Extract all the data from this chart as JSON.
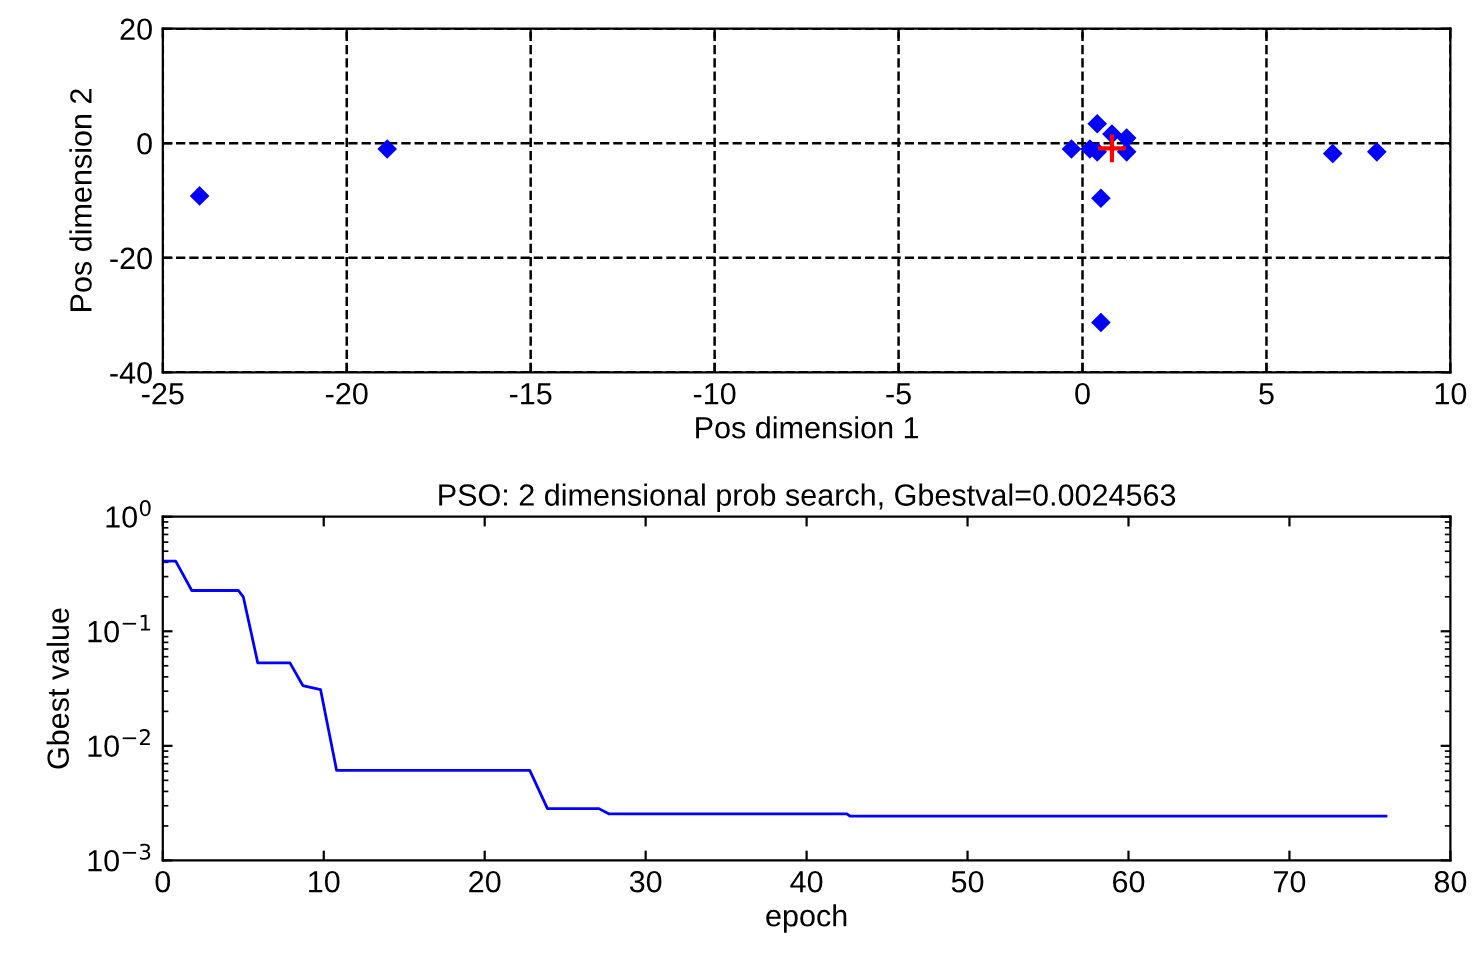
{
  "chart_data": [
    {
      "type": "scatter",
      "xlabel": "Pos dimension 1",
      "ylabel": "Pos dimension 2",
      "xlim": [
        -25,
        10
      ],
      "ylim": [
        -40,
        20
      ],
      "xticks": [
        -25,
        -20,
        -15,
        -10,
        -5,
        0,
        5,
        10
      ],
      "yticks": [
        -40,
        -20,
        0,
        20
      ],
      "grid": true,
      "line_style": "dashed",
      "series": [
        {
          "color": "#0000ff",
          "marker": "diamond",
          "x": [
            -24.0,
            -18.9,
            6.8,
            8.0,
            0.5,
            0.5,
            -0.3,
            0.2,
            0.4,
            0.8,
            1.2,
            0.4,
            1.2
          ],
          "values": [
            -9.2,
            -1.0,
            -1.8,
            -1.5,
            -9.6,
            -31.3,
            -1.0,
            -1.0,
            3.4,
            1.6,
            0.9,
            -1.5,
            -1.5
          ]
        },
        {
          "color": "#ff0000",
          "marker": "cross",
          "x": [
            0.8
          ],
          "values": [
            -0.9
          ]
        }
      ]
    },
    {
      "type": "line",
      "title": "PSO: 2 dimensional prob search, Gbestval=0.0024563",
      "xlabel": "epoch",
      "ylabel": "Gbest value",
      "log": "y",
      "xlim": [
        0,
        80
      ],
      "ylim": [
        0.001,
        1
      ],
      "xticks": [
        0,
        10,
        20,
        30,
        40,
        50,
        60,
        70,
        80
      ],
      "yticks": [
        {
          "value": 0.001,
          "label": "10$^{−3}$"
        },
        {
          "value": 0.01,
          "label": "10$^{−2}$"
        },
        {
          "value": 0.1,
          "label": "10$^{−1}$"
        },
        {
          "value": 1,
          "label": "10$^{0}$"
        }
      ],
      "grid": false,
      "marker": "none",
      "series": [
        {
          "color": "#0000ff",
          "x": [
            0,
            0.8,
            1.8,
            4.7,
            5.0,
            5.9,
            7.9,
            8.7,
            9.8,
            10.8,
            22.8,
            23.9,
            27.1,
            27.7,
            42.5,
            42.7,
            76
          ],
          "values": [
            0.41,
            0.41,
            0.227,
            0.227,
            0.2,
            0.053,
            0.053,
            0.0336,
            0.031,
            0.0061,
            0.0061,
            0.00283,
            0.00283,
            0.00255,
            0.00255,
            0.00243,
            0.00243
          ]
        }
      ]
    }
  ]
}
